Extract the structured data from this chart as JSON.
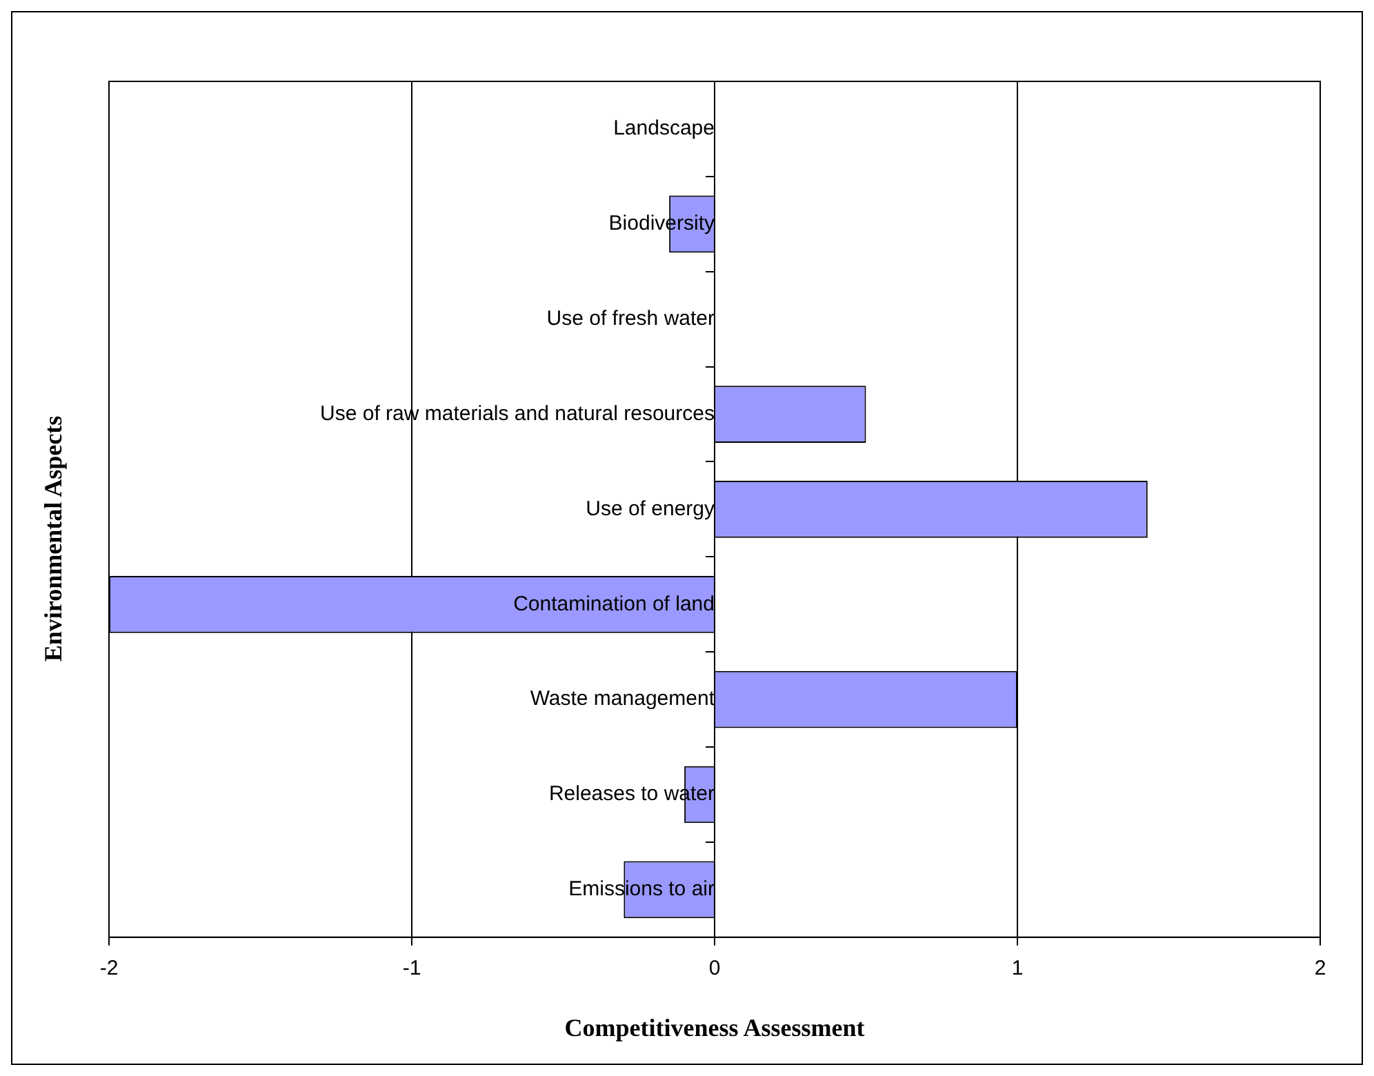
{
  "chart_data": {
    "type": "bar",
    "orientation": "horizontal",
    "xlabel": "Competitiveness Assessment",
    "ylabel": "Environmental Aspects",
    "categories": [
      "Landscape",
      "Biodiversity",
      "Use of fresh water",
      "Use of raw materials and natural resources",
      "Use of energy",
      "Contamination of land",
      "Waste management",
      "Releases to water",
      "Emissions to air"
    ],
    "values": [
      0,
      -0.15,
      0,
      0.5,
      1.43,
      -2,
      1,
      -0.1,
      -0.3
    ],
    "color": "#9999ff",
    "xlim": [
      -2,
      2
    ],
    "xticks": [
      -2,
      -1,
      0,
      1,
      2
    ],
    "grid": "x",
    "legend": false
  }
}
